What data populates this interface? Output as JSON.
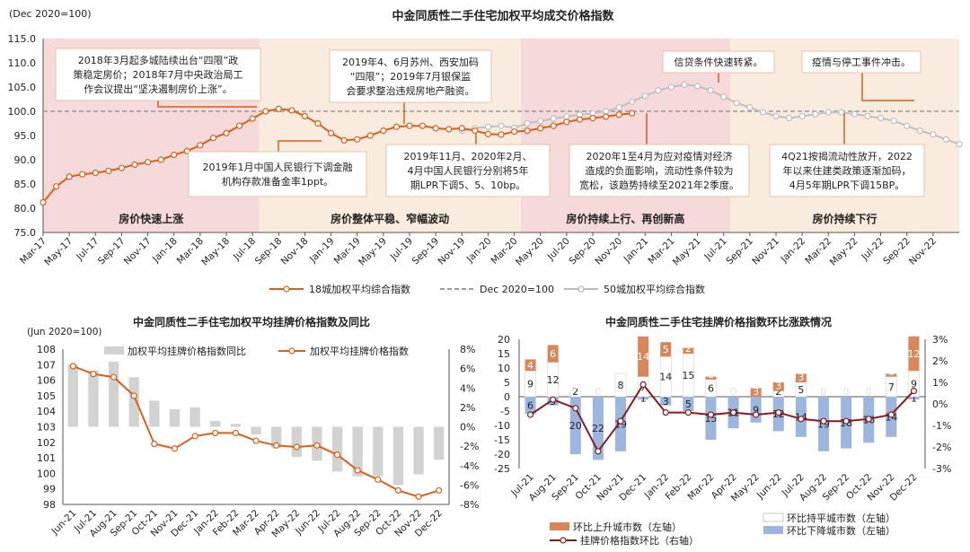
{
  "chart_data": [
    {
      "type": "line",
      "title": "中金同质性二手住宅加权平均成交价格指数",
      "ylabel": "(Dec 2020=100)",
      "ylim": [
        75,
        115
      ],
      "yticks": [
        "75.0",
        "80.0",
        "85.0",
        "90.0",
        "95.0",
        "100.0",
        "105.0",
        "110.0",
        "115.0"
      ],
      "x_labels": [
        "Mar-17",
        "May-17",
        "Jul-17",
        "Sep-17",
        "Nov-17",
        "Jan-18",
        "Mar-18",
        "May-18",
        "Jul-18",
        "Sep-18",
        "Nov-18",
        "Jan-19",
        "Mar-19",
        "May-19",
        "Jul-19",
        "Sep-19",
        "Nov-19",
        "Jan-20",
        "Mar-20",
        "May-20",
        "Jul-20",
        "Sep-20",
        "Nov-20",
        "Jan-21",
        "Mar-21",
        "May-21",
        "Jul-21",
        "Sep-21",
        "Nov-21",
        "Jan-22",
        "Mar-22",
        "May-22",
        "Jul-22",
        "Sep-22",
        "Nov-22"
      ],
      "series": [
        {
          "name": "18城加权平均综合指数",
          "color": "#d9601a",
          "start_index": 0,
          "values": [
            81.2,
            84.5,
            86.5,
            87.0,
            87.3,
            87.7,
            88.3,
            89.0,
            89.5,
            90.0,
            91.0,
            91.8,
            93.0,
            94.5,
            95.5,
            97.0,
            98.5,
            100.0,
            100.5,
            100.2,
            99.0,
            97.5,
            95.5,
            94.0,
            94.2,
            95.0,
            96.0,
            96.8,
            97.0,
            97.0,
            96.5,
            96.3,
            96.5,
            96.0,
            95.3,
            95.2,
            95.8,
            96.0,
            96.5,
            97.0,
            97.8,
            98.3,
            98.6,
            98.9,
            99.3,
            99.6
          ]
        },
        {
          "name": "Dec 2020=100",
          "color": "#999999",
          "dashed": true,
          "constant": 100
        },
        {
          "name": "50城加权平均综合指数",
          "color": "#bbbbbb",
          "start_index": 32,
          "values": [
            96.0,
            96.5,
            96.8,
            97.0,
            96.6,
            97.5,
            98.0,
            98.5,
            98.9,
            99.3,
            99.6,
            100.0,
            100.8,
            102.0,
            103.2,
            104.3,
            105.0,
            105.5,
            105.2,
            104.3,
            103.0,
            101.7,
            100.8,
            99.8,
            99.0,
            98.6,
            99.0,
            99.4,
            99.8,
            99.8,
            99.4,
            99.0,
            98.6,
            98.0,
            97.0,
            96.0,
            95.2,
            94.2,
            93.2
          ]
        }
      ],
      "phases": [
        {
          "label": "房价快速上涨",
          "from": 0,
          "to": 16.5,
          "color": "#f6d9da"
        },
        {
          "label": "房价整体平稳、窄幅波动",
          "from": 16.5,
          "to": 36.5,
          "color": "#f9ecde"
        },
        {
          "label": "房价持续上行、再创新高",
          "from": 36.5,
          "to": 52.5,
          "color": "#f6d9da"
        },
        {
          "label": "房价持续下行",
          "from": 52.5,
          "to": 70,
          "color": "#f9ecde"
        }
      ],
      "annotations": [
        {
          "lines": [
            "2018年3月起多城陆续出台“四限”政",
            "策稳定房价；2018年7月中央政治局工",
            "作会议提出“坚决遏制房价上涨”。"
          ]
        },
        {
          "lines": [
            "2019年4、6月苏州、西安加码",
            "“四限”；2019年7月银保监",
            "会要求整治违规房地产融资。"
          ]
        },
        {
          "lines": [
            "信贷条件快速转紧。"
          ]
        },
        {
          "lines": [
            "疫情与停工事件冲击。"
          ]
        },
        {
          "lines": [
            "2019年1月中国人民银行下调金融",
            "机构存款准备金率1ppt。"
          ]
        },
        {
          "lines": [
            "2019年11月、2020年2月、",
            "4月中国人民银行分别将5年",
            "期LPR下调5、5、10bp。"
          ]
        },
        {
          "lines": [
            "2020年1至4月为应对疫情对经济",
            "造成的负面影响，流动性条件较为",
            "宽松，该趋势持续至2021年2季度。"
          ]
        },
        {
          "lines": [
            "4Q21按揭流动性放开，2022",
            "年以来住建类政策逐渐加码，",
            "4月5年期LPR下调15BP。"
          ]
        }
      ]
    },
    {
      "type": "bar",
      "title": "中金同质性二手住宅加权平均挂牌价格指数及同比",
      "ylabel": "(Jun 2020=100)",
      "categories": [
        "Jun-21",
        "Jul-21",
        "Aug-21",
        "Sep-21",
        "Oct-21",
        "Nov-21",
        "Dec-21",
        "Jan-22",
        "Feb-22",
        "Mar-22",
        "Apr-22",
        "May-22",
        "Jun-22",
        "Jul-22",
        "Aug-22",
        "Sep-22",
        "Oct-22",
        "Nov-22",
        "Dec-22"
      ],
      "ylim_left": [
        98,
        108
      ],
      "ylim_right": [
        -8,
        8
      ],
      "left_ticks": [
        "98",
        "99",
        "100",
        "101",
        "102",
        "103",
        "104",
        "105",
        "106",
        "107",
        "108"
      ],
      "right_ticks": [
        "-8%",
        "-6%",
        "-4%",
        "-2%",
        "0%",
        "2%",
        "4%",
        "6%",
        "8%"
      ],
      "series": [
        {
          "name": "加权平均挂牌价格指数同比",
          "axis": "right",
          "color": "#d2d2d2",
          "values": [
            6.4,
            5.8,
            6.7,
            5.1,
            2.7,
            1.8,
            2.0,
            0.6,
            0.3,
            -0.8,
            -2.2,
            -3.1,
            -3.5,
            -4.6,
            -5.1,
            -5.1,
            -6.0,
            -4.9,
            -3.4
          ]
        },
        {
          "name": "加权平均挂牌价格指数",
          "axis": "left",
          "color": "#d9601a",
          "values": [
            106.9,
            106.4,
            106.2,
            105.0,
            101.9,
            101.6,
            102.4,
            102.6,
            102.6,
            102.1,
            101.8,
            101.7,
            101.8,
            101.2,
            100.2,
            99.6,
            98.9,
            98.5,
            98.9
          ]
        }
      ]
    },
    {
      "type": "bar",
      "title": "中金同质性二手住宅挂牌价格指数环比涨跌情况",
      "categories": [
        "Jul-21",
        "Aug-21",
        "Sep-21",
        "Oct-21",
        "Nov-21",
        "Dec-21",
        "Jan-22",
        "Feb-22",
        "Mar-22",
        "Apr-22",
        "May-22",
        "Jun-22",
        "Jul-22",
        "Aug-22",
        "Sep-22",
        "Oct-22",
        "Nov-22",
        "Dec-22"
      ],
      "ylim_left": [
        -25,
        20
      ],
      "ylim_right": [
        -3,
        3
      ],
      "left_ticks": [
        "-25",
        "-20",
        "-15",
        "-10",
        "-5",
        "0",
        "5",
        "10",
        "15",
        "20"
      ],
      "right_ticks": [
        "-3%",
        "-2%",
        "-1%",
        "0%",
        "1%",
        "2%",
        "3%"
      ],
      "series": [
        {
          "name": "环比上升城市数（左轴）",
          "axis": "left",
          "color": "#d9875a",
          "values": [
            4,
            6,
            0,
            0,
            0,
            14,
            5,
            2,
            1,
            0,
            3,
            3,
            3,
            0,
            0,
            0,
            1,
            12
          ],
          "labels": [
            "4",
            "6",
            "0",
            "0",
            "0",
            "14",
            "5",
            "2",
            "1",
            "0",
            "3",
            "3",
            "3",
            "0",
            "0",
            "0",
            "1",
            "12"
          ]
        },
        {
          "name": "环比持平城市数（左轴）",
          "axis": "left",
          "color": "#ffffff",
          "values": [
            9,
            12,
            2,
            0,
            8,
            7,
            14,
            15,
            6,
            0,
            0,
            2,
            5,
            0,
            0,
            0,
            7,
            9
          ],
          "labels": [
            "9",
            "12",
            "2",
            "0",
            "8",
            "7",
            "14",
            "15",
            "6",
            "0",
            "0",
            "2",
            "5",
            "0",
            "0",
            "0",
            "7",
            "9"
          ]
        },
        {
          "name": "环比下降城市数（左轴）",
          "axis": "left",
          "color": "#9db6e0",
          "values": [
            6,
            3,
            20,
            22,
            19,
            1,
            3,
            5,
            15,
            11,
            9,
            12,
            14,
            19,
            18,
            16,
            14,
            1
          ],
          "labels": [
            "6",
            "3",
            "20",
            "22",
            "19",
            "1",
            "3",
            "5",
            "15",
            "11",
            "9",
            "12",
            "14",
            "19",
            "18",
            "16",
            "14",
            "1"
          ]
        },
        {
          "name": "挂牌价格指数环比（右轴）",
          "axis": "right",
          "color": "#8b1a1a",
          "values": [
            -0.5,
            0.2,
            -0.2,
            -2.2,
            -0.8,
            0.9,
            -0.4,
            -0.4,
            -0.5,
            -0.4,
            -0.5,
            -0.4,
            -0.7,
            -0.8,
            -0.8,
            -0.7,
            -0.5,
            0.6
          ]
        }
      ]
    }
  ]
}
